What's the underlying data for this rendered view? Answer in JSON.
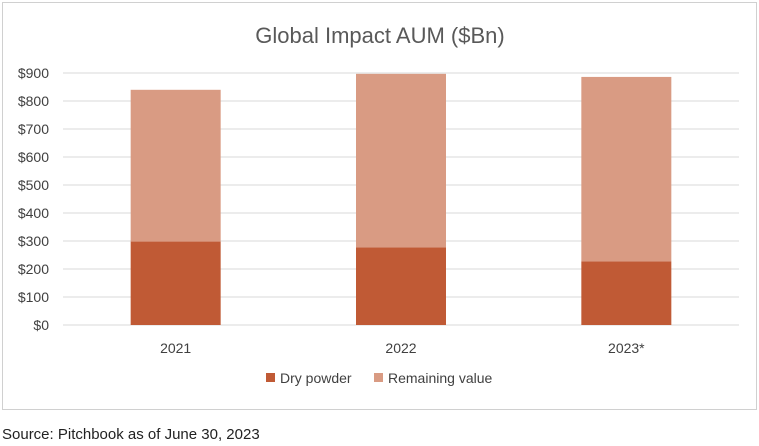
{
  "source_note": "Source: Pitchbook as of June 30, 2023",
  "colors": {
    "dry_powder": "#c05a35",
    "remaining_value": "#d99b83",
    "gridline": "#d9d9d9",
    "text": "#404040"
  },
  "chart_data": {
    "type": "bar",
    "stacked": true,
    "title": "Global Impact AUM ($Bn)",
    "xlabel": "",
    "ylabel": "",
    "categories": [
      "2021",
      "2022",
      "2023*"
    ],
    "series": [
      {
        "name": "Dry powder",
        "values": [
          298,
          277,
          227
        ]
      },
      {
        "name": "Remaining value",
        "values": [
          542,
          620,
          659
        ]
      }
    ],
    "ylim": [
      0,
      900
    ],
    "y_ticks": [
      0,
      100,
      200,
      300,
      400,
      500,
      600,
      700,
      800,
      900
    ],
    "y_tick_labels": [
      "$0",
      "$100",
      "$200",
      "$300",
      "$400",
      "$500",
      "$600",
      "$700",
      "$800",
      "$900"
    ],
    "grid": true,
    "legend_position": "bottom"
  }
}
